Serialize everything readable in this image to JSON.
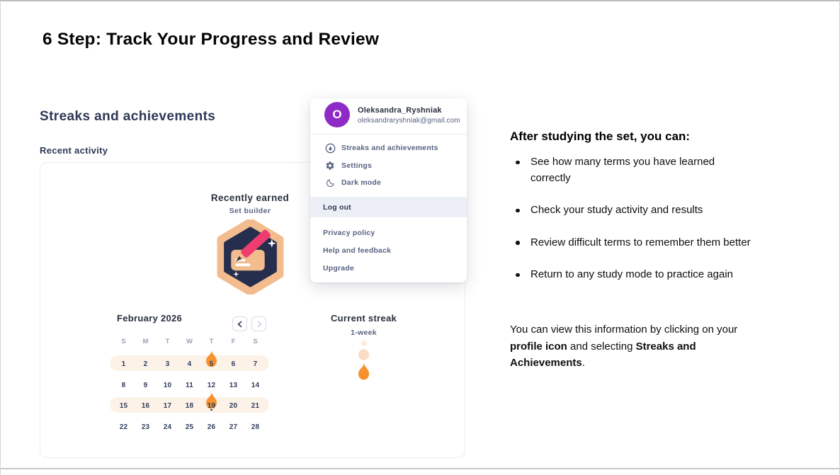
{
  "page": {
    "title": "6 Step: Track Your Progress and Review"
  },
  "screenshot": {
    "heading": "Streaks and achievements",
    "subheading": "Recent activity",
    "recently_earned": {
      "title": "Recently earned",
      "badge_label": "Set builder"
    },
    "calendar": {
      "month": "February 2026",
      "weekday_headers": [
        "S",
        "M",
        "T",
        "W",
        "T",
        "F",
        "S"
      ],
      "weeks": [
        {
          "days": [
            1,
            2,
            3,
            4,
            5,
            6,
            7
          ],
          "highlighted": true,
          "flame_day": 5
        },
        {
          "days": [
            8,
            9,
            10,
            11,
            12,
            13,
            14
          ],
          "highlighted": false
        },
        {
          "days": [
            15,
            16,
            17,
            18,
            19,
            20,
            21
          ],
          "highlighted": true,
          "flame_day": 19,
          "today": 19
        },
        {
          "days": [
            22,
            23,
            24,
            25,
            26,
            27,
            28
          ],
          "highlighted": false
        }
      ]
    },
    "current_streak": {
      "title": "Current streak",
      "value": "1-week"
    },
    "dropdown": {
      "avatar_initial": "O",
      "username": "Oleksandra_Ryshniak",
      "email": "oleksandraryshniak@gmail.com",
      "menu_top": [
        "Streaks and achievements",
        "Settings",
        "Dark mode"
      ],
      "logout_label": "Log out",
      "menu_bottom": [
        "Privacy policy",
        "Help and feedback",
        "Upgrade"
      ]
    }
  },
  "instructions": {
    "heading": "After studying the set, you can:",
    "bullets": [
      "See how many terms you have learned correctly",
      "Check your study activity and results",
      "Review difficult terms to remember them better",
      "Return to any study mode to practice again"
    ],
    "footer": [
      {
        "text": "You can view this information by clicking on your ",
        "bold": false
      },
      {
        "text": "profile icon",
        "bold": true
      },
      {
        "text": " and selecting ",
        "bold": false
      },
      {
        "text": "Streaks and Achievements",
        "bold": true
      },
      {
        "text": ".",
        "bold": false
      }
    ]
  },
  "colors": {
    "streak_orange": "#f8912f",
    "pill_peach": "#fdf2e7",
    "avatar_purple": "#8e2ac6",
    "navy_text": "#282e3e",
    "slate_text": "#586380",
    "badge_peach": "#f2bc8e",
    "badge_navy": "#262e4e",
    "pencil_pink": "#ee3d6e",
    "logout_highlight": "#edeff7"
  }
}
